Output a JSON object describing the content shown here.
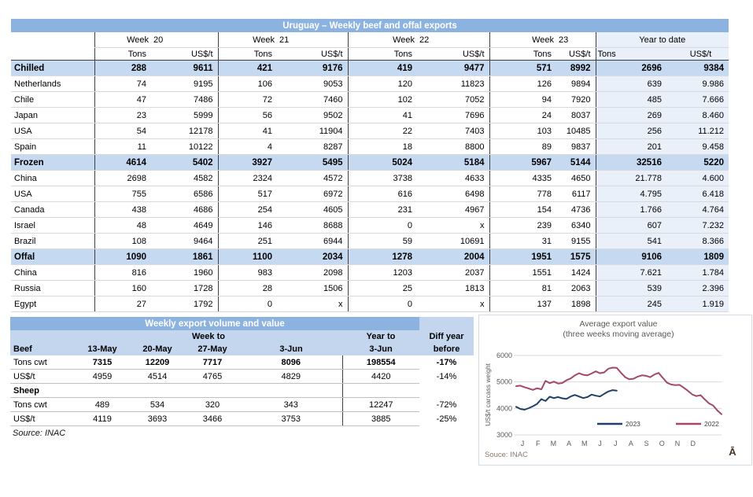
{
  "table1": {
    "title": "Uruguay – Weekly beef and offal exports",
    "week_label": "Week",
    "weeks": [
      "20",
      "21",
      "22",
      "23"
    ],
    "ytd_label": "Year to date",
    "tons_label": "Tons",
    "usd_label": "US$/t",
    "rows": [
      {
        "label": "Chilled",
        "type": "section",
        "cells": [
          "288",
          "9611",
          "421",
          "9176",
          "419",
          "9477",
          "571",
          "8992",
          "2696",
          "9384"
        ]
      },
      {
        "label": "Netherlands",
        "type": "country",
        "cells": [
          "74",
          "9195",
          "106",
          "9053",
          "120",
          "11823",
          "126",
          "9894",
          "639",
          "9.986"
        ]
      },
      {
        "label": "Chile",
        "type": "country",
        "cells": [
          "47",
          "7486",
          "72",
          "7460",
          "102",
          "7052",
          "94",
          "7920",
          "485",
          "7.666"
        ]
      },
      {
        "label": "Japan",
        "type": "country",
        "cells": [
          "23",
          "5999",
          "56",
          "9502",
          "41",
          "7696",
          "24",
          "8037",
          "269",
          "8.460"
        ]
      },
      {
        "label": "USA",
        "type": "country",
        "cells": [
          "54",
          "12178",
          "41",
          "11904",
          "22",
          "7403",
          "103",
          "10485",
          "256",
          "11.212"
        ]
      },
      {
        "label": "Spain",
        "type": "country",
        "cells": [
          "11",
          "10122",
          "4",
          "8287",
          "18",
          "8800",
          "89",
          "9837",
          "201",
          "9.458"
        ]
      },
      {
        "label": "Frozen",
        "type": "section",
        "cells": [
          "4614",
          "5402",
          "3927",
          "5495",
          "5024",
          "5184",
          "5967",
          "5144",
          "32516",
          "5220"
        ]
      },
      {
        "label": "China",
        "type": "country",
        "cells": [
          "2698",
          "4582",
          "2324",
          "4572",
          "3738",
          "4633",
          "4335",
          "4650",
          "21.778",
          "4.600"
        ]
      },
      {
        "label": "USA",
        "type": "country",
        "cells": [
          "755",
          "6586",
          "517",
          "6972",
          "616",
          "6498",
          "778",
          "6117",
          "4.795",
          "6.418"
        ]
      },
      {
        "label": "Canada",
        "type": "country",
        "cells": [
          "438",
          "4686",
          "254",
          "4605",
          "231",
          "4967",
          "154",
          "4736",
          "1.766",
          "4.764"
        ]
      },
      {
        "label": "Israel",
        "type": "country",
        "cells": [
          "48",
          "4649",
          "146",
          "8688",
          "0",
          "x",
          "239",
          "6340",
          "607",
          "7.232"
        ]
      },
      {
        "label": "Brazil",
        "type": "country",
        "cells": [
          "108",
          "9464",
          "251",
          "6944",
          "59",
          "10691",
          "31",
          "9155",
          "541",
          "8.366"
        ]
      },
      {
        "label": "Offal",
        "type": "section",
        "cells": [
          "1090",
          "1861",
          "1100",
          "2034",
          "1278",
          "2004",
          "1951",
          "1575",
          "9106",
          "1809"
        ]
      },
      {
        "label": "China",
        "type": "country",
        "cells": [
          "816",
          "1960",
          "983",
          "2098",
          "1203",
          "2037",
          "1551",
          "1424",
          "7.621",
          "1.784"
        ]
      },
      {
        "label": "Russia",
        "type": "country",
        "cells": [
          "160",
          "1728",
          "28",
          "1506",
          "25",
          "1813",
          "81",
          "2063",
          "539",
          "2.396"
        ]
      },
      {
        "label": "Egypt",
        "type": "country",
        "cells": [
          "27",
          "1792",
          "0",
          "x",
          "0",
          "x",
          "137",
          "1898",
          "245",
          "1.919"
        ]
      }
    ]
  },
  "table2": {
    "title": "Weekly export volume and value",
    "week_to_label": "Week to",
    "year_to_label": "Year to",
    "diff_year_label": "Diff year",
    "before_label": "before",
    "beef_label": "Beef",
    "dates": [
      "13-May",
      "20-May",
      "27-May",
      "3-Jun"
    ],
    "year_to_date": "3-Jun",
    "rows": [
      {
        "label": "Tons cwt",
        "bold_values": true,
        "bold_label": false,
        "cells": [
          "7315",
          "12209",
          "7717",
          "8096",
          "198554",
          "-17%"
        ]
      },
      {
        "label": "US$/t",
        "bold_values": false,
        "bold_label": false,
        "cells": [
          "4959",
          "4514",
          "4765",
          "4829",
          "4420",
          "-14%"
        ]
      },
      {
        "label": "Sheep",
        "bold_values": false,
        "bold_label": true,
        "cells": [
          "",
          "",
          "",
          "",
          "",
          ""
        ]
      },
      {
        "label": "Tons cwt",
        "bold_values": false,
        "bold_label": false,
        "cells": [
          "489",
          "534",
          "320",
          "343",
          "12247",
          "-72%"
        ]
      },
      {
        "label": "US$/t",
        "bold_values": false,
        "bold_label": false,
        "cells": [
          "4119",
          "3693",
          "3466",
          "3753",
          "3885",
          "-25%"
        ]
      }
    ],
    "source": "Source: INAC"
  },
  "chart_data": {
    "type": "line",
    "title": "Average export value",
    "subtitle": "(three weeks moving average)",
    "ylabel": "US$/t carcass weight",
    "ylim": [
      3000,
      6000
    ],
    "yticks": [
      3000,
      4000,
      5000,
      6000
    ],
    "x_labels": [
      "J",
      "F",
      "M",
      "A",
      "M",
      "J",
      "J",
      "A",
      "S",
      "O",
      "N",
      "D"
    ],
    "grid": true,
    "legend_position": "inside-bottom",
    "source": "Souce: INAC",
    "watermark": "Ā",
    "series": [
      {
        "name": "2023",
        "color": "#1F4066",
        "values": [
          4060,
          3980,
          3950,
          4010,
          4080,
          4170,
          4350,
          4280,
          4440,
          4390,
          4430,
          4380,
          4360,
          4450,
          4510,
          4450,
          4390,
          4430,
          4520,
          4480,
          4450,
          4550,
          4640,
          4690,
          4670
        ]
      },
      {
        "name": "2022",
        "color": "#A4476B",
        "values": [
          4840,
          4860,
          4800,
          4750,
          4700,
          4760,
          4720,
          5040,
          4950,
          5010,
          4940,
          4960,
          5060,
          5130,
          5250,
          5330,
          5270,
          5250,
          5320,
          5400,
          5330,
          5360,
          5500,
          5540,
          5530,
          5350,
          5180,
          5100,
          5120,
          5200,
          5250,
          5230,
          5180,
          5280,
          5340,
          5150,
          4970,
          4900,
          4880,
          4890,
          4780,
          4660,
          4530,
          4465,
          4500,
          4340,
          4190,
          4110,
          3920,
          3780
        ]
      }
    ]
  }
}
